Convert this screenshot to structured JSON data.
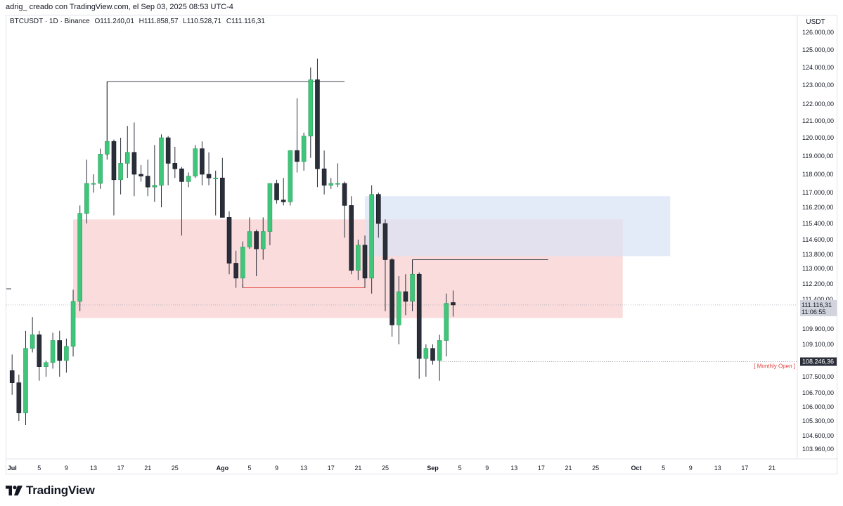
{
  "caption": "adrig_ creado con TradingView.com, el Sep 03, 2025 08:53 UTC-4",
  "header": {
    "symbol": "BTCUSDT · 1D · Binance",
    "open": "O111.240,01",
    "high": "H111.858,57",
    "low": "L110.528,71",
    "close": "C111.116,31"
  },
  "currency": "USDT",
  "brand": "TradingView",
  "colors": {
    "up": "#3fc67a",
    "down": "#2a2e39",
    "demand_zone": "#f7c9c9",
    "supply_zone": "#d9e3f5",
    "low_line": "#e0413a",
    "monthly_open_label": "#e0413a"
  },
  "chart_data": {
    "type": "candlestick",
    "symbol": "BTCUSDT",
    "interval": "1D",
    "y_ticks": [
      "126.000,00",
      "125.000,00",
      "124.000,00",
      "123.000,00",
      "122.000,00",
      "121.000,00",
      "120.000,00",
      "119.000,00",
      "118.000,00",
      "117.000,00",
      "116.200,00",
      "115.400,00",
      "114.600,00",
      "113.800,00",
      "113.000,00",
      "112.200,00",
      "111.400,00",
      "109.900,00",
      "109.100,00",
      "107.500,00",
      "106.700,00",
      "106.000,00",
      "105.300,00",
      "104.600,00",
      "103.960,00"
    ],
    "y_tick_values": [
      126000,
      125000,
      124000,
      123000,
      122000,
      121000,
      120000,
      119000,
      118000,
      117000,
      116200,
      115400,
      114600,
      113800,
      113000,
      112200,
      111400,
      109900,
      109100,
      107500,
      106700,
      106000,
      105300,
      104600,
      103960
    ],
    "x_ticks": [
      {
        "label": "Jul",
        "day": 0,
        "bold": true
      },
      {
        "label": "5",
        "day": 4
      },
      {
        "label": "9",
        "day": 8
      },
      {
        "label": "13",
        "day": 12
      },
      {
        "label": "17",
        "day": 16
      },
      {
        "label": "21",
        "day": 20
      },
      {
        "label": "25",
        "day": 24
      },
      {
        "label": "Ago",
        "day": 31,
        "bold": true
      },
      {
        "label": "5",
        "day": 35
      },
      {
        "label": "9",
        "day": 39
      },
      {
        "label": "13",
        "day": 43
      },
      {
        "label": "17",
        "day": 47
      },
      {
        "label": "21",
        "day": 51
      },
      {
        "label": "25",
        "day": 55
      },
      {
        "label": "Sep",
        "day": 62,
        "bold": true
      },
      {
        "label": "5",
        "day": 66
      },
      {
        "label": "9",
        "day": 70
      },
      {
        "label": "13",
        "day": 74
      },
      {
        "label": "17",
        "day": 78
      },
      {
        "label": "21",
        "day": 82
      },
      {
        "label": "25",
        "day": 86
      },
      {
        "label": "Oct",
        "day": 92,
        "bold": true
      },
      {
        "label": "5",
        "day": 96
      },
      {
        "label": "9",
        "day": 100
      },
      {
        "label": "13",
        "day": 104
      },
      {
        "label": "17",
        "day": 108
      },
      {
        "label": "21",
        "day": 112
      }
    ],
    "candles": [
      {
        "date": "2025-06-30",
        "o": 107800,
        "h": 108600,
        "l": 106600,
        "c": 107200
      },
      {
        "date": "2025-07-01",
        "o": 107200,
        "h": 107600,
        "l": 105300,
        "c": 105700
      },
      {
        "date": "2025-07-02",
        "o": 105700,
        "h": 109800,
        "l": 105100,
        "c": 108900
      },
      {
        "date": "2025-07-03",
        "o": 108900,
        "h": 110500,
        "l": 108700,
        "c": 109600
      },
      {
        "date": "2025-07-04",
        "o": 109600,
        "h": 109800,
        "l": 107300,
        "c": 108000
      },
      {
        "date": "2025-07-05",
        "o": 108000,
        "h": 108300,
        "l": 107500,
        "c": 108200
      },
      {
        "date": "2025-07-06",
        "o": 108200,
        "h": 109700,
        "l": 107900,
        "c": 109300
      },
      {
        "date": "2025-07-07",
        "o": 109300,
        "h": 109800,
        "l": 107500,
        "c": 108300
      },
      {
        "date": "2025-07-08",
        "o": 108300,
        "h": 109400,
        "l": 107700,
        "c": 109000
      },
      {
        "date": "2025-07-09",
        "o": 109000,
        "h": 111900,
        "l": 108500,
        "c": 111300
      },
      {
        "date": "2025-07-10",
        "o": 111300,
        "h": 116300,
        "l": 110800,
        "c": 115900
      },
      {
        "date": "2025-07-11",
        "o": 115900,
        "h": 118800,
        "l": 115400,
        "c": 117500
      },
      {
        "date": "2025-07-12",
        "o": 117500,
        "h": 118000,
        "l": 117000,
        "c": 117500
      },
      {
        "date": "2025-07-13",
        "o": 117500,
        "h": 119400,
        "l": 117200,
        "c": 119100
      },
      {
        "date": "2025-07-14",
        "o": 119100,
        "h": 123200,
        "l": 118800,
        "c": 119800
      },
      {
        "date": "2025-07-15",
        "o": 119800,
        "h": 119900,
        "l": 115800,
        "c": 117700
      },
      {
        "date": "2025-07-16",
        "o": 117700,
        "h": 120000,
        "l": 116900,
        "c": 118600
      },
      {
        "date": "2025-07-17",
        "o": 118600,
        "h": 120700,
        "l": 117800,
        "c": 119200
      },
      {
        "date": "2025-07-18",
        "o": 119200,
        "h": 120900,
        "l": 116800,
        "c": 118000
      },
      {
        "date": "2025-07-19",
        "o": 118000,
        "h": 118500,
        "l": 117600,
        "c": 117900
      },
      {
        "date": "2025-07-20",
        "o": 117900,
        "h": 118800,
        "l": 116800,
        "c": 117300
      },
      {
        "date": "2025-07-21",
        "o": 117300,
        "h": 119600,
        "l": 116500,
        "c": 117400
      },
      {
        "date": "2025-07-22",
        "o": 117400,
        "h": 120200,
        "l": 116200,
        "c": 120000
      },
      {
        "date": "2025-07-23",
        "o": 120000,
        "h": 120100,
        "l": 117400,
        "c": 118600
      },
      {
        "date": "2025-07-24",
        "o": 118600,
        "h": 119500,
        "l": 117800,
        "c": 118300
      },
      {
        "date": "2025-07-25",
        "o": 118300,
        "h": 118400,
        "l": 114800,
        "c": 117600
      },
      {
        "date": "2025-07-26",
        "o": 117600,
        "h": 118100,
        "l": 117300,
        "c": 117900
      },
      {
        "date": "2025-07-27",
        "o": 117900,
        "h": 119600,
        "l": 117800,
        "c": 119400
      },
      {
        "date": "2025-07-28",
        "o": 119400,
        "h": 119800,
        "l": 117400,
        "c": 118000
      },
      {
        "date": "2025-07-29",
        "o": 118000,
        "h": 119200,
        "l": 117400,
        "c": 117800
      },
      {
        "date": "2025-07-30",
        "o": 117800,
        "h": 118200,
        "l": 115800,
        "c": 117800
      },
      {
        "date": "2025-07-31",
        "o": 117800,
        "h": 118900,
        "l": 115800,
        "c": 115700
      },
      {
        "date": "2025-08-01",
        "o": 115700,
        "h": 116000,
        "l": 112700,
        "c": 113300
      },
      {
        "date": "2025-08-02",
        "o": 113300,
        "h": 114000,
        "l": 112000,
        "c": 112500
      },
      {
        "date": "2025-08-03",
        "o": 112500,
        "h": 114500,
        "l": 112000,
        "c": 114200
      },
      {
        "date": "2025-08-04",
        "o": 114200,
        "h": 115700,
        "l": 114100,
        "c": 115000
      },
      {
        "date": "2025-08-05",
        "o": 115000,
        "h": 115100,
        "l": 112600,
        "c": 114100
      },
      {
        "date": "2025-08-06",
        "o": 114100,
        "h": 115700,
        "l": 113500,
        "c": 115000
      },
      {
        "date": "2025-08-07",
        "o": 115000,
        "h": 117500,
        "l": 114300,
        "c": 117500
      },
      {
        "date": "2025-08-08",
        "o": 117500,
        "h": 117700,
        "l": 116400,
        "c": 116600
      },
      {
        "date": "2025-08-09",
        "o": 116600,
        "h": 117800,
        "l": 116300,
        "c": 116500
      },
      {
        "date": "2025-08-10",
        "o": 116500,
        "h": 119300,
        "l": 116300,
        "c": 119300
      },
      {
        "date": "2025-08-11",
        "o": 119300,
        "h": 122300,
        "l": 118100,
        "c": 118700
      },
      {
        "date": "2025-08-12",
        "o": 118700,
        "h": 120300,
        "l": 118200,
        "c": 120100
      },
      {
        "date": "2025-08-13",
        "o": 120100,
        "h": 124000,
        "l": 118900,
        "c": 123300
      },
      {
        "date": "2025-08-14",
        "o": 123300,
        "h": 124500,
        "l": 117300,
        "c": 118300
      },
      {
        "date": "2025-08-15",
        "o": 118300,
        "h": 119300,
        "l": 116900,
        "c": 117400
      },
      {
        "date": "2025-08-16",
        "o": 117400,
        "h": 117800,
        "l": 117200,
        "c": 117500
      },
      {
        "date": "2025-08-17",
        "o": 117500,
        "h": 118600,
        "l": 117300,
        "c": 117500
      },
      {
        "date": "2025-08-18",
        "o": 117500,
        "h": 117600,
        "l": 114700,
        "c": 116300
      },
      {
        "date": "2025-08-19",
        "o": 116300,
        "h": 116800,
        "l": 112700,
        "c": 112900
      },
      {
        "date": "2025-08-20",
        "o": 112900,
        "h": 114600,
        "l": 112400,
        "c": 114300
      },
      {
        "date": "2025-08-21",
        "o": 114300,
        "h": 114800,
        "l": 112000,
        "c": 112500
      },
      {
        "date": "2025-08-22",
        "o": 112500,
        "h": 117400,
        "l": 111700,
        "c": 116900
      },
      {
        "date": "2025-08-23",
        "o": 116900,
        "h": 117000,
        "l": 114700,
        "c": 115400
      },
      {
        "date": "2025-08-24",
        "o": 115400,
        "h": 115600,
        "l": 110800,
        "c": 113500
      },
      {
        "date": "2025-08-25",
        "o": 113500,
        "h": 113600,
        "l": 109500,
        "c": 110100
      },
      {
        "date": "2025-08-26",
        "o": 110100,
        "h": 112600,
        "l": 109100,
        "c": 111800
      },
      {
        "date": "2025-08-27",
        "o": 111800,
        "h": 112700,
        "l": 110600,
        "c": 111300
      },
      {
        "date": "2025-08-28",
        "o": 111300,
        "h": 113500,
        "l": 110800,
        "c": 112700
      },
      {
        "date": "2025-08-29",
        "o": 112700,
        "h": 112800,
        "l": 107400,
        "c": 108400
      },
      {
        "date": "2025-08-30",
        "o": 108400,
        "h": 109100,
        "l": 107500,
        "c": 108900
      },
      {
        "date": "2025-08-31",
        "o": 108900,
        "h": 109100,
        "l": 108100,
        "c": 108300
      },
      {
        "date": "2025-09-01",
        "o": 108300,
        "h": 109600,
        "l": 107300,
        "c": 109300
      },
      {
        "date": "2025-09-02",
        "o": 109300,
        "h": 111700,
        "l": 108500,
        "c": 111200
      },
      {
        "date": "2025-09-03",
        "o": 111240.01,
        "h": 111858.57,
        "l": 110528.71,
        "c": 111116.31
      }
    ],
    "zones": [
      {
        "name": "demand",
        "start_day": 9,
        "end_day": 90,
        "top": 115600,
        "bottom": 110450
      },
      {
        "name": "supply",
        "start_day": 52,
        "end_day": 97,
        "top": 116800,
        "bottom": 113700
      }
    ],
    "lines": [
      {
        "name": "high-range",
        "day_start": 14,
        "day_end": 49,
        "value": 123200,
        "drop_to": 119000
      },
      {
        "name": "low-line",
        "day_start": 34,
        "day_end": 52,
        "value": 112000
      },
      {
        "name": "mid-line",
        "day_start": 59,
        "day_end": 79,
        "value": 113500
      }
    ],
    "price_labels": {
      "last": "111.116,31",
      "countdown": "11:06:55",
      "monthly_open": "108.246,36",
      "monthly_open_label": "[ Monthly Open ]"
    },
    "last_value": 111116.31,
    "monthly_open_value": 108246.36
  }
}
